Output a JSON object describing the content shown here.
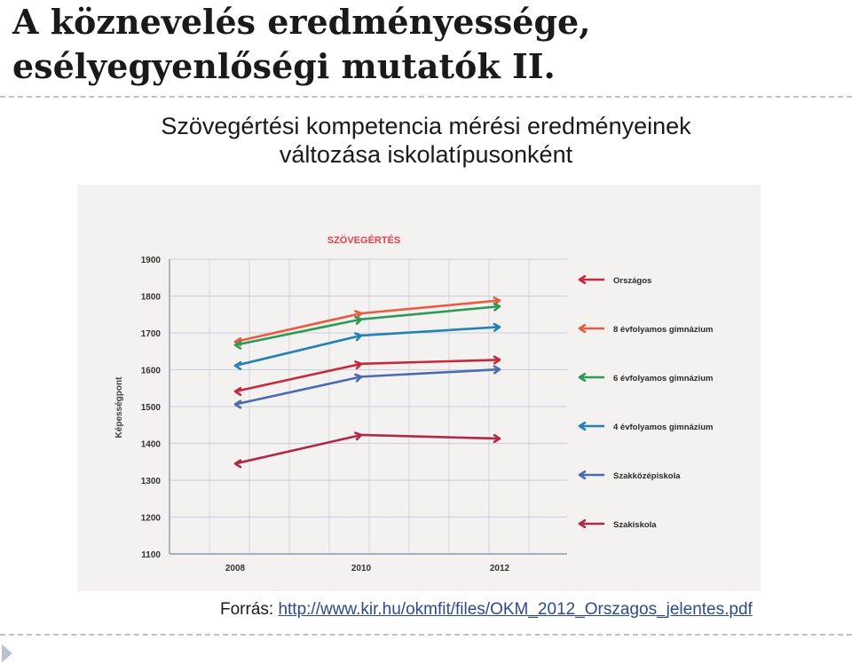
{
  "slide": {
    "title_line1": "A köznevelés eredményessége,",
    "title_line2": "esélyegyenlőségi mutatók II.",
    "subtitle_line1": "Szövegértési kompetencia mérési eredményeinek",
    "subtitle_line2": "változása iskolatípusonként",
    "source_label": "Forrás: ",
    "source_link": "http://www.kir.hu/okmfit/files/OKM_2012_Orszagos_jelentes.pdf"
  },
  "colors": {
    "rule": "#b9c3cf",
    "title_chart": "#e8404a",
    "grid": "#c9ceda",
    "axis": "#8c9bb6"
  },
  "chart_data": {
    "type": "line",
    "title": "SZÖVEGÉRTÉS",
    "ylabel": "Képességpont",
    "xlabel": "",
    "x": [
      "2008",
      "2010",
      "2012"
    ],
    "ylim": [
      1100,
      1900
    ],
    "yticks": [
      1100,
      1200,
      1300,
      1400,
      1500,
      1600,
      1700,
      1800,
      1900
    ],
    "grid": true,
    "legend_position": "right",
    "series": [
      {
        "name": "Országos",
        "color": "#c8283c",
        "values": [
          1541,
          1616,
          1627
        ]
      },
      {
        "name": "8 évfolyamos gimnázium",
        "color": "#ec5a40",
        "values": [
          1676,
          1753,
          1788
        ]
      },
      {
        "name": "6 évfolyamos gimnázium",
        "color": "#2e9a57",
        "values": [
          1667,
          1737,
          1772
        ]
      },
      {
        "name": "4 évfolyamos gimnázium",
        "color": "#2481b4",
        "values": [
          1611,
          1693,
          1716
        ]
      },
      {
        "name": "Szakközépiskola",
        "color": "#4a6ab2",
        "values": [
          1506,
          1581,
          1601
        ]
      },
      {
        "name": "Szakiskola",
        "color": "#b02a48",
        "values": [
          1345,
          1423,
          1413
        ]
      }
    ]
  }
}
